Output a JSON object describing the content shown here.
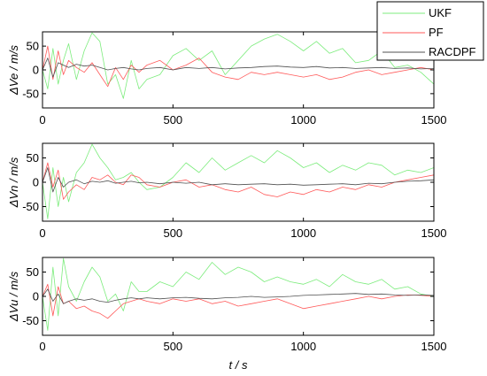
{
  "colors": {
    "UKF": "#7cec7c",
    "PF": "#ff5a5a",
    "RACDPF": "#505050"
  },
  "legend": {
    "placement": "top-right",
    "entries": [
      "UKF",
      "PF",
      "RACDPF"
    ]
  },
  "chart_data": [
    {
      "type": "line",
      "ylabel": "ΔVe / m/s",
      "xlabel": "",
      "xlim": [
        0,
        1500
      ],
      "ylim": [
        -80,
        80
      ],
      "xticks": [
        0,
        500,
        1000,
        1500
      ],
      "yticks": [
        -50,
        0,
        50
      ],
      "grid": false,
      "series": [
        {
          "name": "UKF",
          "x": [
            0,
            20,
            40,
            60,
            80,
            100,
            130,
            160,
            190,
            220,
            250,
            280,
            310,
            340,
            370,
            400,
            450,
            500,
            550,
            600,
            650,
            700,
            750,
            800,
            850,
            900,
            950,
            1000,
            1050,
            1100,
            1150,
            1200,
            1250,
            1300,
            1350,
            1400,
            1450,
            1500
          ],
          "values": [
            0,
            -40,
            45,
            -30,
            20,
            55,
            -20,
            40,
            78,
            60,
            -30,
            -10,
            -60,
            20,
            -40,
            -20,
            -10,
            30,
            45,
            20,
            40,
            -10,
            20,
            50,
            65,
            75,
            60,
            40,
            60,
            35,
            45,
            15,
            20,
            40,
            5,
            10,
            -5,
            -30
          ]
        },
        {
          "name": "PF",
          "x": [
            0,
            20,
            40,
            60,
            80,
            100,
            130,
            160,
            190,
            220,
            250,
            280,
            310,
            340,
            370,
            400,
            450,
            500,
            550,
            600,
            650,
            700,
            750,
            800,
            850,
            900,
            950,
            1000,
            1050,
            1100,
            1150,
            1200,
            1250,
            1300,
            1350,
            1400,
            1450,
            1500
          ],
          "values": [
            0,
            50,
            -20,
            40,
            -10,
            20,
            5,
            -5,
            15,
            -10,
            -35,
            5,
            -20,
            10,
            -5,
            10,
            20,
            0,
            10,
            25,
            -5,
            -15,
            -20,
            -5,
            -10,
            -5,
            -10,
            -15,
            -10,
            -20,
            -15,
            -5,
            0,
            -10,
            -5,
            0,
            5,
            0
          ]
        },
        {
          "name": "RACDPF",
          "x": [
            0,
            20,
            40,
            60,
            80,
            100,
            130,
            160,
            190,
            220,
            250,
            280,
            310,
            340,
            370,
            400,
            450,
            500,
            550,
            600,
            650,
            700,
            750,
            800,
            850,
            900,
            950,
            1000,
            1050,
            1100,
            1150,
            1200,
            1250,
            1300,
            1350,
            1400,
            1450,
            1500
          ],
          "values": [
            0,
            25,
            -15,
            15,
            10,
            5,
            12,
            8,
            10,
            5,
            0,
            3,
            5,
            2,
            0,
            3,
            5,
            0,
            5,
            3,
            5,
            2,
            4,
            5,
            7,
            8,
            6,
            5,
            7,
            4,
            5,
            3,
            4,
            5,
            3,
            4,
            2,
            3
          ]
        }
      ]
    },
    {
      "type": "line",
      "ylabel": "ΔVn / m/s",
      "xlabel": "",
      "xlim": [
        0,
        1500
      ],
      "ylim": [
        -80,
        80
      ],
      "xticks": [
        0,
        500,
        1000,
        1500
      ],
      "yticks": [
        -50,
        0,
        50
      ],
      "grid": false,
      "series": [
        {
          "name": "UKF",
          "x": [
            0,
            20,
            40,
            60,
            80,
            100,
            130,
            160,
            190,
            220,
            250,
            280,
            310,
            340,
            370,
            400,
            450,
            500,
            550,
            600,
            650,
            700,
            750,
            800,
            850,
            900,
            950,
            1000,
            1050,
            1100,
            1150,
            1200,
            1250,
            1300,
            1350,
            1400,
            1450,
            1500
          ],
          "values": [
            0,
            -75,
            30,
            -50,
            10,
            -40,
            20,
            40,
            78,
            50,
            30,
            5,
            10,
            20,
            0,
            -15,
            -10,
            10,
            40,
            20,
            50,
            25,
            40,
            55,
            40,
            65,
            50,
            30,
            40,
            20,
            35,
            25,
            40,
            35,
            15,
            25,
            20,
            30
          ]
        },
        {
          "name": "PF",
          "x": [
            0,
            20,
            40,
            60,
            80,
            100,
            130,
            160,
            190,
            220,
            250,
            280,
            310,
            340,
            370,
            400,
            450,
            500,
            550,
            600,
            650,
            700,
            750,
            800,
            850,
            900,
            950,
            1000,
            1050,
            1100,
            1150,
            1200,
            1250,
            1300,
            1350,
            1400,
            1450,
            1500
          ],
          "values": [
            0,
            40,
            -10,
            25,
            -35,
            -20,
            -5,
            -15,
            10,
            5,
            15,
            0,
            -5,
            15,
            10,
            -5,
            -10,
            0,
            5,
            -10,
            -5,
            -15,
            -20,
            -10,
            -25,
            -30,
            -20,
            -25,
            -15,
            -20,
            -10,
            -15,
            -5,
            -10,
            0,
            5,
            10,
            15
          ]
        },
        {
          "name": "RACDPF",
          "x": [
            0,
            20,
            40,
            60,
            80,
            100,
            130,
            160,
            190,
            220,
            250,
            280,
            310,
            340,
            370,
            400,
            450,
            500,
            550,
            600,
            650,
            700,
            750,
            800,
            850,
            900,
            950,
            1000,
            1050,
            1100,
            1150,
            1200,
            1250,
            1300,
            1350,
            1400,
            1450,
            1500
          ],
          "values": [
            0,
            30,
            -20,
            10,
            -10,
            0,
            5,
            -3,
            2,
            0,
            3,
            -2,
            0,
            2,
            -1,
            0,
            -3,
            0,
            -2,
            0,
            -5,
            -3,
            -5,
            -4,
            -3,
            -5,
            -4,
            -6,
            -5,
            -4,
            -3,
            -5,
            -2,
            -3,
            0,
            2,
            3,
            5
          ]
        }
      ]
    },
    {
      "type": "line",
      "ylabel": "ΔVu / m/s",
      "xlabel": "t / s",
      "xlim": [
        0,
        1500
      ],
      "ylim": [
        -80,
        80
      ],
      "xticks": [
        0,
        500,
        1000,
        1500
      ],
      "yticks": [
        -50,
        0,
        50
      ],
      "grid": false,
      "series": [
        {
          "name": "UKF",
          "x": [
            0,
            20,
            40,
            60,
            80,
            100,
            130,
            160,
            190,
            220,
            250,
            280,
            310,
            340,
            370,
            400,
            450,
            500,
            550,
            600,
            650,
            700,
            750,
            800,
            850,
            900,
            950,
            1000,
            1050,
            1100,
            1150,
            1200,
            1250,
            1300,
            1350,
            1400,
            1450,
            1500
          ],
          "values": [
            0,
            -70,
            60,
            -40,
            78,
            20,
            -10,
            30,
            60,
            40,
            -10,
            5,
            -30,
            30,
            10,
            10,
            30,
            20,
            50,
            35,
            70,
            45,
            60,
            50,
            30,
            40,
            30,
            25,
            35,
            20,
            45,
            30,
            25,
            35,
            15,
            20,
            5,
            0
          ]
        },
        {
          "name": "PF",
          "x": [
            0,
            20,
            40,
            60,
            80,
            100,
            130,
            160,
            190,
            220,
            250,
            280,
            310,
            340,
            370,
            400,
            450,
            500,
            550,
            600,
            650,
            700,
            750,
            800,
            850,
            900,
            950,
            1000,
            1050,
            1100,
            1150,
            1200,
            1250,
            1300,
            1350,
            1400,
            1450,
            1500
          ],
          "values": [
            0,
            25,
            -40,
            20,
            -15,
            -10,
            -25,
            -20,
            -30,
            -35,
            -45,
            -30,
            -15,
            -10,
            -5,
            -10,
            -15,
            -5,
            -10,
            -5,
            -15,
            -10,
            -20,
            -15,
            -10,
            -5,
            -15,
            -25,
            -20,
            -15,
            -10,
            -5,
            0,
            -5,
            0,
            3,
            2,
            0
          ]
        },
        {
          "name": "RACDPF",
          "x": [
            0,
            20,
            40,
            60,
            80,
            100,
            130,
            160,
            190,
            220,
            250,
            280,
            310,
            340,
            370,
            400,
            450,
            500,
            550,
            600,
            650,
            700,
            750,
            800,
            850,
            900,
            950,
            1000,
            1050,
            1100,
            1150,
            1200,
            1250,
            1300,
            1350,
            1400,
            1450,
            1500
          ],
          "values": [
            0,
            15,
            -10,
            5,
            -15,
            -10,
            -5,
            -8,
            -5,
            -10,
            -12,
            -8,
            -5,
            -3,
            -5,
            -3,
            -5,
            -3,
            -2,
            -4,
            -5,
            -3,
            -2,
            0,
            -2,
            -1,
            0,
            2,
            3,
            4,
            5,
            6,
            4,
            5,
            3,
            2,
            3,
            2
          ]
        }
      ]
    }
  ]
}
